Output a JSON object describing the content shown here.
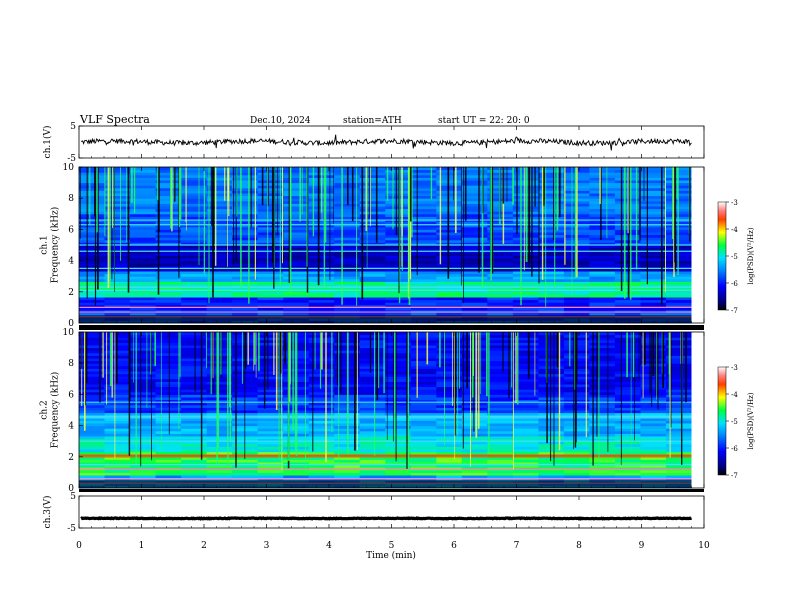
{
  "header": {
    "title": "VLF  Spectra",
    "date": "Dec.10, 2024",
    "station": "station=ATH",
    "start": "start  UT  =   22: 20: 0"
  },
  "chart_data": [
    {
      "type": "line",
      "name": "ch1-waveform",
      "ylabel": "ch.1(V)",
      "ylim": [
        -5,
        5
      ],
      "yticks": [
        "5",
        "-5"
      ],
      "level": 0,
      "amplitude": 0.8
    },
    {
      "type": "heatmap",
      "name": "ch1-spectrogram",
      "ylabel": "ch.1\nFrequency  (kHz)",
      "ylim": [
        0,
        10
      ],
      "yticks": [
        "0",
        "2",
        "4",
        "6",
        "8",
        "10"
      ],
      "colorbar": {
        "label": "log(PSD)(V²/Hz)",
        "range": [
          -7,
          -3
        ],
        "ticks": [
          "-3",
          "-4",
          "-5",
          "-6",
          "-7"
        ]
      }
    },
    {
      "type": "heatmap",
      "name": "ch2-spectrogram",
      "ylabel": "ch.2\nFrequency  (kHz)",
      "ylim": [
        0,
        10
      ],
      "yticks": [
        "0",
        "2",
        "4",
        "6",
        "8",
        "10"
      ],
      "colorbar": {
        "label": "log(PSD)(V²/Hz)",
        "range": [
          -7,
          -3
        ],
        "ticks": [
          "-3",
          "-4",
          "-5",
          "-6",
          "-7"
        ]
      }
    },
    {
      "type": "line",
      "name": "ch3-waveform",
      "ylabel": "ch.3(V)",
      "ylim": [
        -5,
        5
      ],
      "yticks": [
        "5",
        "-5"
      ],
      "level": -2,
      "amplitude": 0.1
    }
  ],
  "xaxis": {
    "label": "Time  (min)",
    "xlim": [
      0,
      10
    ],
    "ticks": [
      "0",
      "1",
      "2",
      "3",
      "4",
      "5",
      "6",
      "7",
      "8",
      "9",
      "10"
    ],
    "data_end": 9.8
  },
  "colors": {
    "scale": [
      "#000080",
      "#0000ff",
      "#0080ff",
      "#00ffff",
      "#00ff00",
      "#ffff00",
      "#ff8000",
      "#ff0000",
      "#ffffff"
    ]
  }
}
